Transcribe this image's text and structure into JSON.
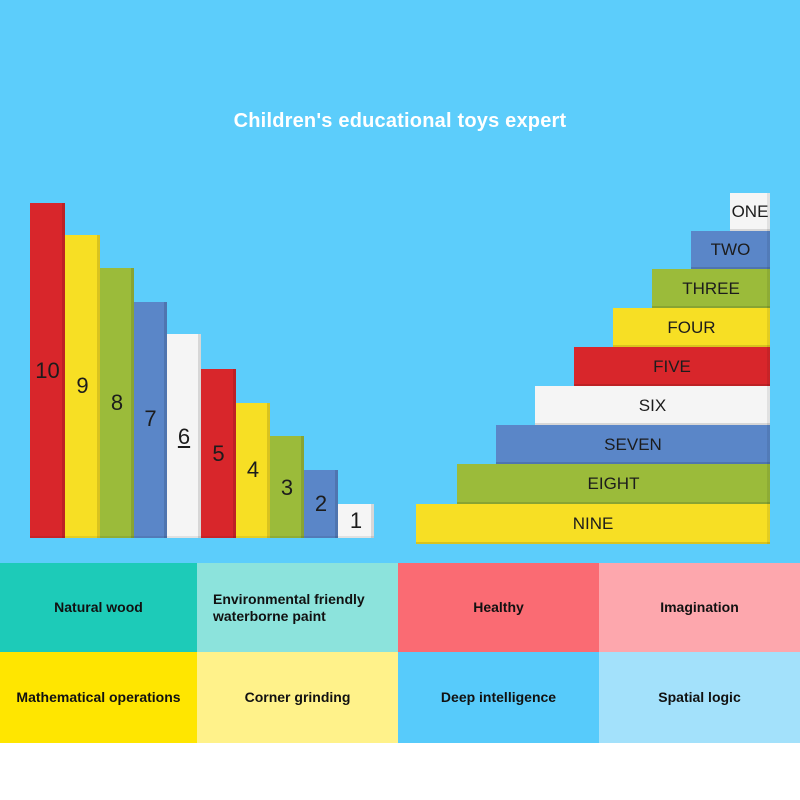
{
  "title": "Children's educational toys expert",
  "colors": {
    "background": "#5ccdfb",
    "red": "#d8262b",
    "yellow": "#f7df24",
    "green": "#9bbb3a",
    "blue": "#5a86c8",
    "white": "#f5f5f5"
  },
  "number_rods": [
    {
      "label": "10",
      "color": "#d8262b"
    },
    {
      "label": "9",
      "color": "#f7df24"
    },
    {
      "label": "8",
      "color": "#9bbb3a"
    },
    {
      "label": "7",
      "color": "#5a86c8"
    },
    {
      "label": "6",
      "color": "#f5f5f5"
    },
    {
      "label": "5",
      "color": "#d8262b"
    },
    {
      "label": "4",
      "color": "#f7df24"
    },
    {
      "label": "3",
      "color": "#9bbb3a"
    },
    {
      "label": "2",
      "color": "#5a86c8"
    },
    {
      "label": "1",
      "color": "#f5f5f5"
    }
  ],
  "word_rods": [
    {
      "label": "ONE",
      "color": "#f5f5f5"
    },
    {
      "label": "TWO",
      "color": "#5a86c8"
    },
    {
      "label": "THREE",
      "color": "#9bbb3a"
    },
    {
      "label": "FOUR",
      "color": "#f7df24"
    },
    {
      "label": "FIVE",
      "color": "#d8262b"
    },
    {
      "label": "SIX",
      "color": "#f5f5f5"
    },
    {
      "label": "SEVEN",
      "color": "#5a86c8"
    },
    {
      "label": "EIGHT",
      "color": "#9bbb3a"
    },
    {
      "label": "NINE",
      "color": "#f7df24"
    }
  ],
  "features": [
    {
      "label": "Natural wood",
      "color": "#1dcbb8"
    },
    {
      "label": "Environmental friendly waterborne paint",
      "color": "#8ce3dc"
    },
    {
      "label": "Healthy",
      "color": "#fa6b73"
    },
    {
      "label": "Imagination",
      "color": "#fda7ad"
    },
    {
      "label": "Mathematical operations",
      "color": "#ffe600"
    },
    {
      "label": "Corner grinding",
      "color": "#fff28a"
    },
    {
      "label": "Deep intelligence",
      "color": "#57cbfb"
    },
    {
      "label": "Spatial logic",
      "color": "#a3e1fb"
    }
  ]
}
